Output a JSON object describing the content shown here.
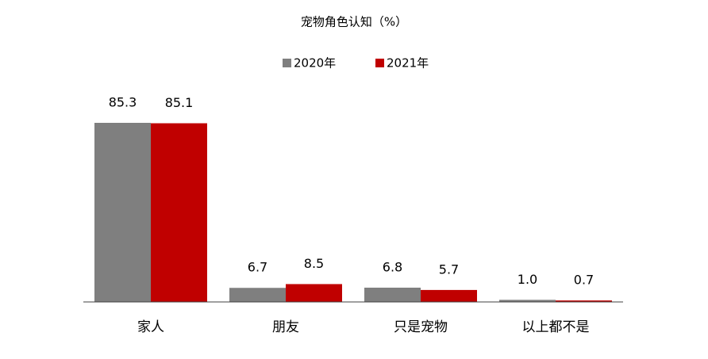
{
  "chart_data": {
    "type": "bar",
    "title": "宠物角色认知（%）",
    "categories": [
      "家人",
      "朋友",
      "只是宠物",
      "以上都不是"
    ],
    "series": [
      {
        "name": "2020年",
        "color": "#7f7f7f",
        "values": [
          85.3,
          6.7,
          6.8,
          1.0
        ],
        "value_labels": [
          "85.3",
          "6.7",
          "6.8",
          "1.0"
        ]
      },
      {
        "name": "2021年",
        "color": "#c00000",
        "values": [
          85.1,
          8.5,
          5.7,
          0.7
        ],
        "value_labels": [
          "85.1",
          "8.5",
          "5.7",
          "0.7"
        ]
      }
    ],
    "legend": "top"
  }
}
